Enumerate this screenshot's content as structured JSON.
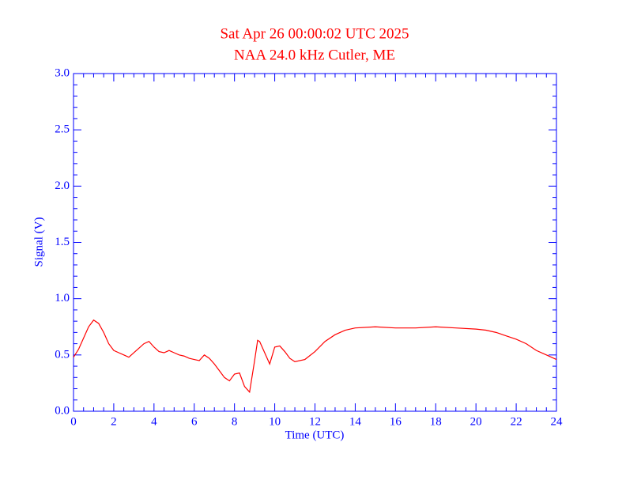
{
  "chart_data": {
    "type": "line",
    "title": "Sat Apr 26 00:00:02 UTC 2025",
    "subtitle": "NAA 24.0 kHz Cutler, ME",
    "xlabel": "Time (UTC)",
    "ylabel": "Signal (V)",
    "xlim": [
      0,
      24
    ],
    "ylim": [
      0,
      3
    ],
    "xticks": [
      0,
      2,
      4,
      6,
      8,
      10,
      12,
      14,
      16,
      18,
      20,
      22,
      24
    ],
    "yticks": [
      {
        "value": 0,
        "label": "0.0"
      },
      0.5,
      {
        "value": 1,
        "label": "1.0"
      },
      1.5,
      {
        "value": 2,
        "label": "2.0"
      },
      2.5,
      {
        "value": 3,
        "label": "3.0"
      }
    ],
    "xminorticks": [
      0.5,
      1,
      1.5,
      2.5,
      3,
      3.5,
      4.5,
      5,
      5.5,
      6.5,
      7,
      7.5,
      8.5,
      9,
      9.5,
      10.5,
      11,
      11.5,
      12.5,
      13,
      13.5,
      14.5,
      15,
      15.5,
      16.5,
      17,
      17.5,
      18.5,
      19,
      19.5,
      20.5,
      21,
      21.5,
      22.5,
      23,
      23.5
    ],
    "yminorticks": [
      0.1,
      0.2,
      0.3,
      0.4,
      0.6,
      0.7,
      0.8,
      0.9,
      1.1,
      1.2,
      1.3,
      1.4,
      1.6,
      1.7,
      1.8,
      1.9,
      2.1,
      2.2,
      2.3,
      2.4,
      2.6,
      2.7,
      2.8,
      2.9
    ],
    "axis_color": "#0000ff",
    "series": [
      {
        "name": "NAA",
        "color": "#ff0000",
        "x": [
          0,
          0.25,
          0.5,
          0.75,
          1,
          1.25,
          1.5,
          1.75,
          2,
          2.25,
          2.5,
          2.75,
          3,
          3.25,
          3.5,
          3.75,
          4,
          4.25,
          4.5,
          4.75,
          5,
          5.25,
          5.5,
          5.75,
          6,
          6.25,
          6.5,
          6.75,
          7,
          7.25,
          7.5,
          7.75,
          8,
          8.25,
          8.5,
          8.75,
          9,
          9.15,
          9.25,
          9.5,
          9.75,
          10,
          10.25,
          10.5,
          10.75,
          11,
          11.5,
          12,
          12.5,
          13,
          13.5,
          14,
          15,
          16,
          17,
          18,
          19,
          20,
          20.5,
          21,
          21.5,
          22,
          22.5,
          23,
          23.5,
          24
        ],
        "values": [
          0.48,
          0.55,
          0.65,
          0.75,
          0.81,
          0.78,
          0.7,
          0.6,
          0.54,
          0.52,
          0.5,
          0.48,
          0.52,
          0.56,
          0.6,
          0.62,
          0.57,
          0.53,
          0.52,
          0.54,
          0.52,
          0.5,
          0.49,
          0.47,
          0.46,
          0.45,
          0.5,
          0.47,
          0.42,
          0.36,
          0.3,
          0.27,
          0.33,
          0.34,
          0.22,
          0.17,
          0.45,
          0.63,
          0.62,
          0.52,
          0.42,
          0.57,
          0.58,
          0.53,
          0.47,
          0.44,
          0.46,
          0.53,
          0.62,
          0.68,
          0.72,
          0.74,
          0.75,
          0.74,
          0.74,
          0.75,
          0.74,
          0.73,
          0.72,
          0.7,
          0.67,
          0.64,
          0.6,
          0.54,
          0.5,
          0.46
        ]
      }
    ]
  }
}
